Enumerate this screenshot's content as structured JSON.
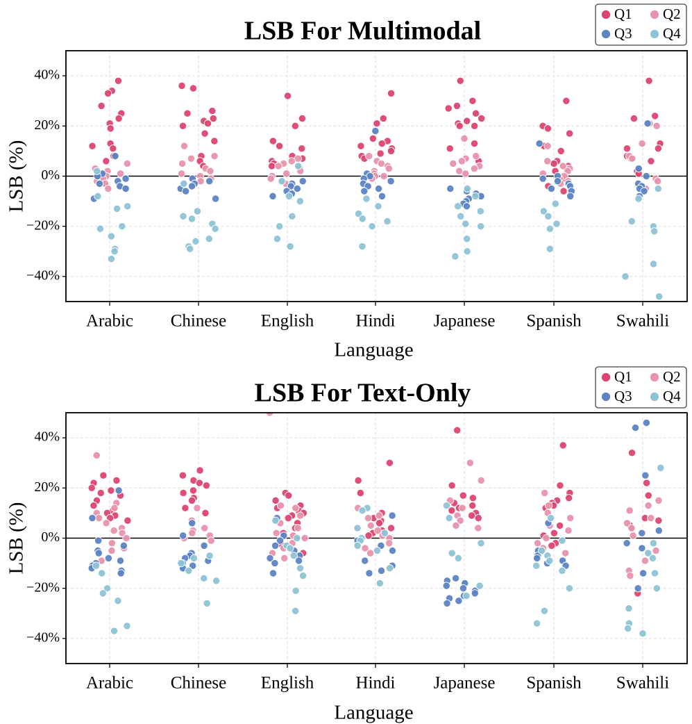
{
  "chart_data": [
    {
      "type": "scatter",
      "title": "LSB For Multimodal",
      "xlabel": "Language",
      "ylabel": "LSB (%)",
      "ylim": [
        -50,
        50
      ],
      "yticks": [
        -40,
        -20,
        0,
        20,
        40
      ],
      "ytick_labels": [
        "−40%",
        "−20%",
        "0%",
        "20%",
        "40%"
      ],
      "grid": true,
      "legend_position": "top-right",
      "categories": [
        "Arabic",
        "Chinese",
        "English",
        "Hindi",
        "Japanese",
        "Spanish",
        "Swahili"
      ],
      "series": [
        {
          "name": "Q1",
          "color": "#dc4470",
          "values": [
            [
              38,
              34,
              33,
              28,
              25,
              23,
              21,
              19,
              13,
              12,
              11,
              8,
              6
            ],
            [
              36,
              35,
              26,
              25,
              23,
              22,
              21,
              20,
              17,
              14,
              8,
              6,
              4
            ],
            [
              32,
              23,
              20,
              14,
              12,
              11,
              8,
              7,
              6,
              5,
              4
            ],
            [
              33,
              23,
              21,
              15,
              14,
              13,
              12,
              11,
              10,
              9,
              8,
              7
            ],
            [
              38,
              30,
              28,
              27,
              25,
              23,
              22,
              21,
              20,
              20,
              13,
              11,
              6
            ],
            [
              30,
              20,
              19,
              17,
              12,
              10,
              6,
              5,
              4,
              3,
              2,
              -1,
              -4,
              -6
            ],
            [
              38,
              24,
              23,
              13,
              11,
              11,
              8,
              7,
              6,
              2,
              1
            ]
          ]
        },
        {
          "name": "Q2",
          "color": "#e893ab",
          "values": [
            [
              5,
              3,
              2,
              1,
              0,
              -1,
              -2,
              -3,
              -5
            ],
            [
              12,
              8,
              7,
              5,
              3,
              2,
              1,
              0,
              -1,
              -2,
              -3
            ],
            [
              7,
              6,
              5,
              4,
              3,
              2,
              1,
              0,
              -1,
              -2,
              -3
            ],
            [
              8,
              6,
              5,
              4,
              3,
              2,
              1,
              0,
              0,
              -1
            ],
            [
              15,
              8,
              7,
              6,
              5,
              4,
              3,
              2,
              1
            ],
            [
              12,
              6,
              4,
              3,
              2,
              1,
              0,
              -1,
              -2,
              -3
            ],
            [
              21,
              20,
              13,
              8,
              7,
              -1,
              -2,
              -5
            ]
          ]
        },
        {
          "name": "Q3",
          "color": "#5b84c4",
          "values": [
            [
              8,
              1,
              0,
              -1,
              -2,
              -3,
              -4,
              -5,
              -9
            ],
            [
              -1,
              -2,
              -3,
              -4,
              -5,
              -6,
              -9
            ],
            [
              -2,
              -3,
              -4,
              -5,
              -6,
              -7,
              -8
            ],
            [
              18,
              1,
              0,
              -1,
              -2,
              -3,
              -4,
              -5,
              -6,
              -8
            ],
            [
              -5,
              -6,
              -7,
              -8,
              -9,
              -10,
              -11,
              -12
            ],
            [
              13,
              0,
              -1,
              -2,
              -3,
              -4,
              -5,
              -6,
              -8
            ],
            [
              21,
              3,
              0,
              -3,
              -4,
              -5,
              -6,
              -8
            ]
          ]
        },
        {
          "name": "Q4",
          "color": "#8cc3d6",
          "values": [
            [
              2,
              -8,
              -12,
              -13,
              -20,
              -21,
              -24,
              -29,
              -30,
              -33
            ],
            [
              -3,
              -14,
              -16,
              -17,
              -19,
              -21,
              -25,
              -26,
              -28,
              -29
            ],
            [
              4,
              -2,
              -8,
              -10,
              -16,
              -20,
              -25,
              -28
            ],
            [
              -9,
              -12,
              -15,
              -17,
              -18,
              -20,
              -28
            ],
            [
              -5,
              -8,
              -12,
              -14,
              -16,
              -19,
              -20,
              -25,
              -30,
              -32
            ],
            [
              -11,
              -14,
              -16,
              -19,
              -21,
              -29
            ],
            [
              -5,
              -9,
              -18,
              -20,
              -22,
              -35,
              -40,
              -48
            ]
          ]
        }
      ]
    },
    {
      "type": "scatter",
      "title": "LSB For Text-Only",
      "xlabel": "Language",
      "ylabel": "LSB (%)",
      "ylim": [
        -50,
        50
      ],
      "yticks": [
        -40,
        -20,
        0,
        20,
        40
      ],
      "ytick_labels": [
        "−40%",
        "−20%",
        "0%",
        "20%",
        "40%"
      ],
      "grid": true,
      "legend_position": "top-right",
      "categories": [
        "Arabic",
        "Chinese",
        "English",
        "Hindi",
        "Japanese",
        "Spanish",
        "Swahili"
      ],
      "series": [
        {
          "name": "Q1",
          "color": "#dc4470",
          "values": [
            [
              25,
              23,
              22,
              20,
              19,
              18,
              17,
              15,
              13,
              11,
              10,
              9,
              8,
              7
            ],
            [
              27,
              25,
              23,
              22,
              21,
              19,
              18,
              16,
              15,
              12,
              10
            ],
            [
              18,
              17,
              15,
              13,
              12,
              11,
              10,
              9,
              8,
              6,
              4,
              2,
              -3,
              -6
            ],
            [
              30,
              23,
              18,
              10,
              8,
              7,
              6,
              4,
              3,
              2,
              1
            ],
            [
              43,
              21,
              17,
              16,
              14,
              13,
              12,
              11,
              10,
              9,
              8
            ],
            [
              37,
              21,
              18,
              16,
              15,
              14,
              13,
              12,
              5,
              2,
              1,
              -2,
              -3
            ],
            [
              34,
              22,
              17,
              8,
              7,
              5,
              4,
              -22
            ]
          ]
        },
        {
          "name": "Q2",
          "color": "#e893ab",
          "values": [
            [
              33,
              14,
              12,
              10,
              8,
              6,
              4,
              3,
              2,
              0,
              -2,
              -4,
              -5,
              -9
            ],
            [
              12,
              7,
              4,
              3,
              2,
              1,
              0,
              -1
            ],
            [
              50,
              13,
              12,
              9,
              6,
              4,
              2,
              1,
              0,
              -2,
              -4,
              -6,
              -8
            ],
            [
              12,
              9,
              8,
              5,
              3,
              1,
              0,
              -2,
              -4,
              -6
            ],
            [
              30,
              23,
              15,
              12,
              9,
              7,
              5,
              4
            ],
            [
              18,
              13,
              10,
              8,
              5,
              3,
              0,
              -2,
              -4,
              -6
            ],
            [
              15,
              13,
              11,
              8,
              6,
              4,
              1,
              -5,
              -9,
              -13,
              -15
            ]
          ]
        },
        {
          "name": "Q3",
          "color": "#5b84c4",
          "values": [
            [
              19,
              8,
              -1,
              -3,
              -5,
              -6,
              -8,
              -9,
              -10,
              -11,
              -12,
              -13,
              -14
            ],
            [
              6,
              1,
              -3,
              -6,
              -7,
              -8,
              -9,
              -10,
              -11,
              -12
            ],
            [
              8,
              1,
              -1,
              -3,
              -5,
              -7,
              -8,
              -9,
              -10,
              -14
            ],
            [
              9,
              -1,
              -3,
              -5,
              -9,
              -11,
              -13,
              -14
            ],
            [
              -16,
              -17,
              -18,
              -19,
              -20,
              -21,
              -22,
              -23,
              -24,
              -25,
              -26
            ],
            [
              6,
              -5,
              -7,
              -8,
              -9,
              -10,
              -11
            ],
            [
              46,
              44,
              25,
              3,
              2,
              -2,
              -4,
              -14,
              -20
            ]
          ]
        },
        {
          "name": "Q4",
          "color": "#8cc3d6",
          "values": [
            [
              -11,
              -14,
              -20,
              -22,
              -25,
              -35,
              -37
            ],
            [
              -7,
              -8,
              -10,
              -13,
              -16,
              -17,
              -26
            ],
            [
              7,
              0,
              -3,
              -4,
              -7,
              -12,
              -15,
              -21,
              -29
            ],
            [
              12,
              11,
              4,
              2,
              0,
              -1,
              -3,
              -5,
              -12,
              -18
            ],
            [
              13,
              8,
              -2,
              -6,
              -8,
              -19,
              -23
            ],
            [
              8,
              -1,
              -5,
              -7,
              -9,
              -11,
              -13,
              -20,
              -29,
              -34
            ],
            [
              28,
              -2,
              -6,
              -8,
              -14,
              -20,
              -28,
              -34,
              -36,
              -38
            ]
          ]
        }
      ]
    }
  ]
}
